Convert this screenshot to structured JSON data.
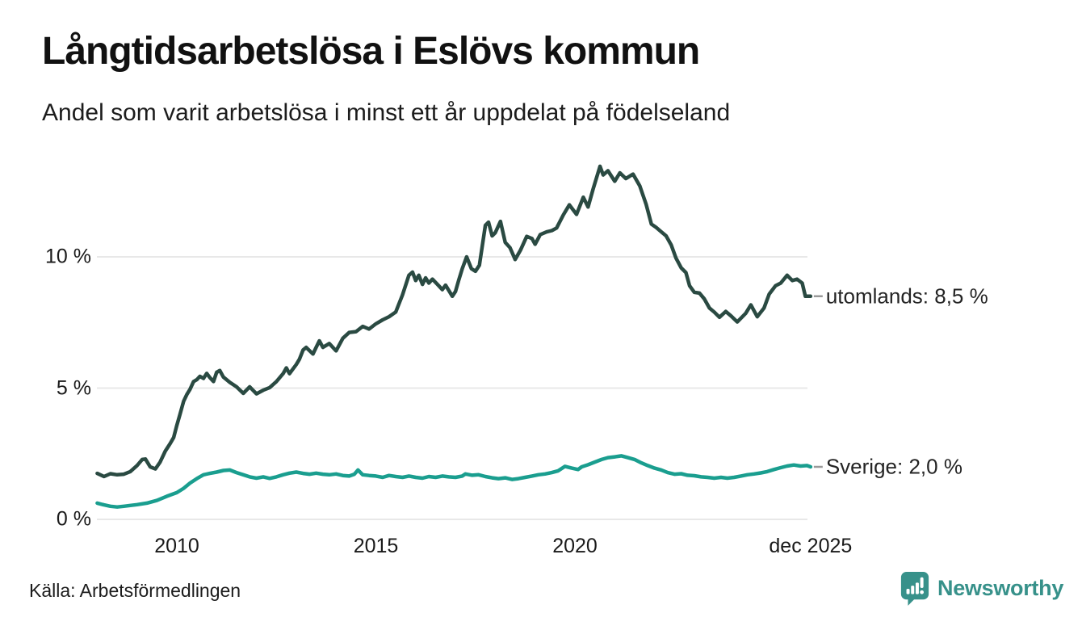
{
  "header": {
    "title": "Långtidsarbetslösa i Eslövs kommun",
    "subtitle": "Andel som varit arbetslösa i minst ett år uppdelat på födelseland"
  },
  "footer": {
    "source": "Källa: Arbetsförmedlingen",
    "brand": "Newsworthy",
    "brand_color": "#37918a"
  },
  "chart_data": {
    "type": "line",
    "title": "Långtidsarbetslösa i Eslövs kommun",
    "subtitle": "Andel som varit arbetslösa i minst ett år uppdelat på födelseland",
    "grid_on": true,
    "grid_color": "#e8e8e8",
    "connector_color": "#999999",
    "x_axis": {
      "unit": "year",
      "range": [
        2008.0,
        2025.92
      ],
      "ticks": [
        {
          "label": "2010",
          "year": 2010
        },
        {
          "label": "2015",
          "year": 2015
        },
        {
          "label": "2020",
          "year": 2020
        },
        {
          "label": "dec 2025",
          "year": 2025.92
        }
      ]
    },
    "y_axis": {
      "unit": "%",
      "range": [
        0,
        14
      ],
      "ticks": [
        {
          "label": "0 %",
          "value": 0
        },
        {
          "label": "5 %",
          "value": 5
        },
        {
          "label": "10 %",
          "value": 10
        }
      ]
    },
    "legend_position": "end-of-line-labels",
    "series": [
      {
        "name": "utomlands",
        "end_label": "utomlands: 8,5 %",
        "end_value": "8,5 %",
        "color": "#2a4a42",
        "points": [
          [
            2008.0,
            1.75
          ],
          [
            2008.17,
            1.63
          ],
          [
            2008.33,
            1.74
          ],
          [
            2008.5,
            1.7
          ],
          [
            2008.67,
            1.72
          ],
          [
            2008.83,
            1.82
          ],
          [
            2009.0,
            2.05
          ],
          [
            2009.13,
            2.28
          ],
          [
            2009.21,
            2.3
          ],
          [
            2009.33,
            2.0
          ],
          [
            2009.46,
            1.92
          ],
          [
            2009.58,
            2.18
          ],
          [
            2009.71,
            2.6
          ],
          [
            2009.83,
            2.88
          ],
          [
            2009.92,
            3.12
          ],
          [
            2010.0,
            3.58
          ],
          [
            2010.08,
            4.0
          ],
          [
            2010.17,
            4.5
          ],
          [
            2010.25,
            4.75
          ],
          [
            2010.33,
            4.95
          ],
          [
            2010.42,
            5.25
          ],
          [
            2010.5,
            5.32
          ],
          [
            2010.58,
            5.45
          ],
          [
            2010.67,
            5.37
          ],
          [
            2010.75,
            5.56
          ],
          [
            2010.83,
            5.4
          ],
          [
            2010.92,
            5.25
          ],
          [
            2011.0,
            5.6
          ],
          [
            2011.08,
            5.67
          ],
          [
            2011.17,
            5.42
          ],
          [
            2011.33,
            5.22
          ],
          [
            2011.5,
            5.05
          ],
          [
            2011.67,
            4.8
          ],
          [
            2011.83,
            5.05
          ],
          [
            2012.0,
            4.78
          ],
          [
            2012.17,
            4.92
          ],
          [
            2012.33,
            5.02
          ],
          [
            2012.5,
            5.25
          ],
          [
            2012.67,
            5.55
          ],
          [
            2012.75,
            5.77
          ],
          [
            2012.83,
            5.55
          ],
          [
            2013.0,
            5.9
          ],
          [
            2013.08,
            6.1
          ],
          [
            2013.17,
            6.45
          ],
          [
            2013.25,
            6.55
          ],
          [
            2013.42,
            6.3
          ],
          [
            2013.5,
            6.55
          ],
          [
            2013.58,
            6.8
          ],
          [
            2013.67,
            6.55
          ],
          [
            2013.83,
            6.7
          ],
          [
            2014.0,
            6.42
          ],
          [
            2014.17,
            6.9
          ],
          [
            2014.33,
            7.12
          ],
          [
            2014.5,
            7.15
          ],
          [
            2014.67,
            7.35
          ],
          [
            2014.83,
            7.25
          ],
          [
            2015.0,
            7.45
          ],
          [
            2015.17,
            7.6
          ],
          [
            2015.33,
            7.72
          ],
          [
            2015.5,
            7.9
          ],
          [
            2015.67,
            8.55
          ],
          [
            2015.83,
            9.3
          ],
          [
            2015.92,
            9.42
          ],
          [
            2016.0,
            9.1
          ],
          [
            2016.08,
            9.3
          ],
          [
            2016.17,
            8.95
          ],
          [
            2016.25,
            9.2
          ],
          [
            2016.33,
            9.0
          ],
          [
            2016.42,
            9.15
          ],
          [
            2016.58,
            8.9
          ],
          [
            2016.67,
            8.75
          ],
          [
            2016.75,
            8.92
          ],
          [
            2016.92,
            8.5
          ],
          [
            2017.0,
            8.68
          ],
          [
            2017.08,
            9.1
          ],
          [
            2017.17,
            9.55
          ],
          [
            2017.28,
            10.0
          ],
          [
            2017.4,
            9.55
          ],
          [
            2017.5,
            9.45
          ],
          [
            2017.6,
            9.68
          ],
          [
            2017.75,
            11.2
          ],
          [
            2017.83,
            11.32
          ],
          [
            2017.92,
            10.8
          ],
          [
            2018.0,
            10.92
          ],
          [
            2018.13,
            11.35
          ],
          [
            2018.25,
            10.55
          ],
          [
            2018.37,
            10.35
          ],
          [
            2018.5,
            9.9
          ],
          [
            2018.63,
            10.25
          ],
          [
            2018.79,
            10.78
          ],
          [
            2018.92,
            10.7
          ],
          [
            2019.0,
            10.48
          ],
          [
            2019.13,
            10.85
          ],
          [
            2019.29,
            10.95
          ],
          [
            2019.42,
            11.0
          ],
          [
            2019.54,
            11.1
          ],
          [
            2019.71,
            11.6
          ],
          [
            2019.86,
            11.98
          ],
          [
            2020.04,
            11.62
          ],
          [
            2020.21,
            12.27
          ],
          [
            2020.33,
            11.9
          ],
          [
            2020.46,
            12.6
          ],
          [
            2020.63,
            13.45
          ],
          [
            2020.71,
            13.12
          ],
          [
            2020.83,
            13.28
          ],
          [
            2021.0,
            12.88
          ],
          [
            2021.13,
            13.2
          ],
          [
            2021.28,
            12.98
          ],
          [
            2021.46,
            13.15
          ],
          [
            2021.63,
            12.7
          ],
          [
            2021.79,
            12.0
          ],
          [
            2021.92,
            11.25
          ],
          [
            2022.04,
            11.12
          ],
          [
            2022.17,
            10.95
          ],
          [
            2022.29,
            10.8
          ],
          [
            2022.42,
            10.45
          ],
          [
            2022.54,
            9.95
          ],
          [
            2022.67,
            9.58
          ],
          [
            2022.79,
            9.4
          ],
          [
            2022.88,
            8.9
          ],
          [
            2023.0,
            8.65
          ],
          [
            2023.13,
            8.62
          ],
          [
            2023.25,
            8.4
          ],
          [
            2023.38,
            8.05
          ],
          [
            2023.5,
            7.9
          ],
          [
            2023.63,
            7.7
          ],
          [
            2023.79,
            7.92
          ],
          [
            2023.92,
            7.75
          ],
          [
            2024.08,
            7.52
          ],
          [
            2024.29,
            7.85
          ],
          [
            2024.42,
            8.17
          ],
          [
            2024.58,
            7.72
          ],
          [
            2024.75,
            8.05
          ],
          [
            2024.88,
            8.58
          ],
          [
            2025.04,
            8.9
          ],
          [
            2025.17,
            9.0
          ],
          [
            2025.33,
            9.3
          ],
          [
            2025.46,
            9.1
          ],
          [
            2025.58,
            9.15
          ],
          [
            2025.71,
            9.0
          ],
          [
            2025.79,
            8.5
          ],
          [
            2025.92,
            8.5
          ]
        ]
      },
      {
        "name": "Sverige",
        "end_label": "Sverige: 2,0 %",
        "end_value": "2,0 %",
        "color": "#1a9e8f",
        "points": [
          [
            2008.0,
            0.62
          ],
          [
            2008.17,
            0.55
          ],
          [
            2008.33,
            0.5
          ],
          [
            2008.5,
            0.47
          ],
          [
            2008.67,
            0.5
          ],
          [
            2008.83,
            0.53
          ],
          [
            2009.0,
            0.56
          ],
          [
            2009.25,
            0.62
          ],
          [
            2009.5,
            0.72
          ],
          [
            2009.75,
            0.88
          ],
          [
            2010.0,
            1.02
          ],
          [
            2010.17,
            1.18
          ],
          [
            2010.33,
            1.38
          ],
          [
            2010.5,
            1.55
          ],
          [
            2010.67,
            1.7
          ],
          [
            2010.83,
            1.75
          ],
          [
            2011.0,
            1.8
          ],
          [
            2011.17,
            1.86
          ],
          [
            2011.33,
            1.88
          ],
          [
            2011.5,
            1.78
          ],
          [
            2011.67,
            1.7
          ],
          [
            2011.83,
            1.62
          ],
          [
            2012.0,
            1.57
          ],
          [
            2012.17,
            1.62
          ],
          [
            2012.33,
            1.56
          ],
          [
            2012.5,
            1.62
          ],
          [
            2012.67,
            1.7
          ],
          [
            2012.83,
            1.76
          ],
          [
            2013.0,
            1.8
          ],
          [
            2013.17,
            1.75
          ],
          [
            2013.33,
            1.72
          ],
          [
            2013.5,
            1.76
          ],
          [
            2013.67,
            1.72
          ],
          [
            2013.83,
            1.7
          ],
          [
            2014.0,
            1.73
          ],
          [
            2014.17,
            1.67
          ],
          [
            2014.33,
            1.65
          ],
          [
            2014.46,
            1.72
          ],
          [
            2014.55,
            1.88
          ],
          [
            2014.67,
            1.7
          ],
          [
            2014.83,
            1.67
          ],
          [
            2015.0,
            1.65
          ],
          [
            2015.17,
            1.6
          ],
          [
            2015.33,
            1.67
          ],
          [
            2015.5,
            1.63
          ],
          [
            2015.67,
            1.6
          ],
          [
            2015.83,
            1.65
          ],
          [
            2016.0,
            1.6
          ],
          [
            2016.17,
            1.57
          ],
          [
            2016.33,
            1.63
          ],
          [
            2016.5,
            1.6
          ],
          [
            2016.67,
            1.65
          ],
          [
            2016.83,
            1.62
          ],
          [
            2017.0,
            1.6
          ],
          [
            2017.17,
            1.65
          ],
          [
            2017.25,
            1.73
          ],
          [
            2017.42,
            1.68
          ],
          [
            2017.58,
            1.7
          ],
          [
            2017.75,
            1.63
          ],
          [
            2017.92,
            1.58
          ],
          [
            2018.08,
            1.55
          ],
          [
            2018.25,
            1.58
          ],
          [
            2018.42,
            1.52
          ],
          [
            2018.58,
            1.55
          ],
          [
            2018.75,
            1.6
          ],
          [
            2018.92,
            1.65
          ],
          [
            2019.08,
            1.7
          ],
          [
            2019.25,
            1.73
          ],
          [
            2019.42,
            1.78
          ],
          [
            2019.58,
            1.85
          ],
          [
            2019.75,
            2.02
          ],
          [
            2019.92,
            1.95
          ],
          [
            2020.08,
            1.9
          ],
          [
            2020.17,
            2.0
          ],
          [
            2020.33,
            2.08
          ],
          [
            2020.5,
            2.18
          ],
          [
            2020.67,
            2.28
          ],
          [
            2020.83,
            2.35
          ],
          [
            2021.0,
            2.38
          ],
          [
            2021.17,
            2.42
          ],
          [
            2021.33,
            2.35
          ],
          [
            2021.5,
            2.28
          ],
          [
            2021.67,
            2.15
          ],
          [
            2021.83,
            2.05
          ],
          [
            2022.0,
            1.95
          ],
          [
            2022.17,
            1.88
          ],
          [
            2022.33,
            1.78
          ],
          [
            2022.5,
            1.72
          ],
          [
            2022.67,
            1.74
          ],
          [
            2022.83,
            1.68
          ],
          [
            2023.0,
            1.66
          ],
          [
            2023.17,
            1.62
          ],
          [
            2023.33,
            1.6
          ],
          [
            2023.5,
            1.57
          ],
          [
            2023.67,
            1.6
          ],
          [
            2023.83,
            1.57
          ],
          [
            2024.0,
            1.6
          ],
          [
            2024.17,
            1.65
          ],
          [
            2024.33,
            1.7
          ],
          [
            2024.5,
            1.73
          ],
          [
            2024.67,
            1.77
          ],
          [
            2024.83,
            1.82
          ],
          [
            2025.0,
            1.9
          ],
          [
            2025.17,
            1.97
          ],
          [
            2025.33,
            2.03
          ],
          [
            2025.5,
            2.07
          ],
          [
            2025.67,
            2.03
          ],
          [
            2025.83,
            2.05
          ],
          [
            2025.92,
            2.0
          ]
        ]
      }
    ]
  }
}
